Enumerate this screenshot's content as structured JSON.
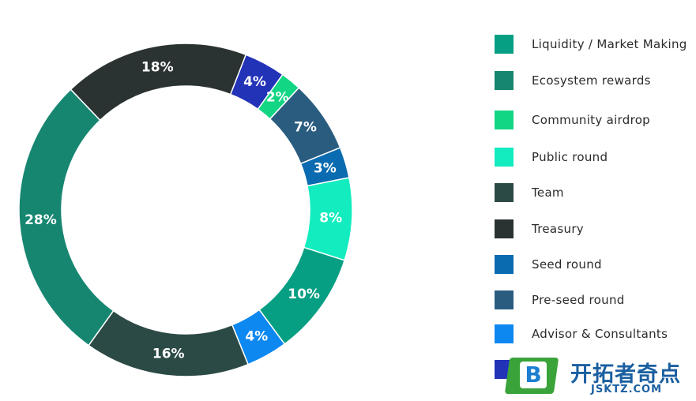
{
  "chart_data": {
    "type": "pie",
    "style": "donut",
    "slices": [
      {
        "label": "Seed round",
        "value": 3,
        "display": "3%",
        "color": "#0a6bb0"
      },
      {
        "label": "Public round",
        "value": 8,
        "display": "8%",
        "color": "#13ecbf"
      },
      {
        "label": "Liquidity / Market Making",
        "value": 10,
        "display": "10%",
        "color": "#079f83"
      },
      {
        "label": "Advisor & Consultants",
        "value": 4,
        "display": "4%",
        "color": "#0c88f0"
      },
      {
        "label": "Team",
        "value": 16,
        "display": "16%",
        "color": "#2c4a45"
      },
      {
        "label": "Ecosystem rewards",
        "value": 28,
        "display": "28%",
        "color": "#168671"
      },
      {
        "label": "Treasury",
        "value": 18,
        "display": "18%",
        "color": "#2b3332"
      },
      {
        "label": "",
        "value": 4,
        "display": "4%",
        "color": "#2233b8"
      },
      {
        "label": "Community airdrop",
        "value": 2,
        "display": "2%",
        "color": "#12d684"
      },
      {
        "label": "Pre-seed round",
        "value": 7,
        "display": "7%",
        "color": "#2a5c80"
      }
    ],
    "legend_position": "right"
  },
  "legend": [
    {
      "label": "Liquidity / Market Making",
      "color": "#079f83"
    },
    {
      "label": "Ecosystem rewards",
      "color": "#168671"
    },
    {
      "label": "Community airdrop",
      "color": "#12d684"
    },
    {
      "label": "Public round",
      "color": "#13ecbf"
    },
    {
      "label": "Team",
      "color": "#2c4a45"
    },
    {
      "label": "Treasury",
      "color": "#2b3332"
    },
    {
      "label": "Seed round",
      "color": "#0a6bb0"
    },
    {
      "label": "Pre-seed round",
      "color": "#2a5c80"
    },
    {
      "label": "Advisor & Consultants",
      "color": "#0c88f0"
    },
    {
      "label": "",
      "color": "#2233b8"
    }
  ],
  "watermark": {
    "logo_letter": "B",
    "title": "开拓者奇点",
    "subtitle": "JSKTZ.COM"
  }
}
